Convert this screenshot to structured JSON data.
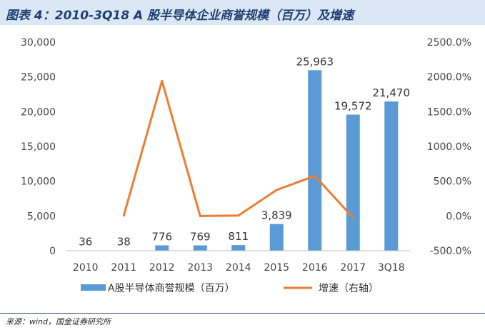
{
  "header": {
    "title": "图表 4：2010-3Q18 A 股半导体企业商誉规模（百万）及增速"
  },
  "footer": {
    "source": "来源：wind，国金证券研究所"
  },
  "colors": {
    "bar": "#5b9bd5",
    "line": "#ed7d31",
    "title_bg": "#dbe7f5",
    "title_text": "#1c3f73"
  },
  "chart_data": {
    "type": "bar+line",
    "categories": [
      "2010",
      "2011",
      "2012",
      "2013",
      "2014",
      "2015",
      "2016",
      "2017",
      "3Q18"
    ],
    "series": [
      {
        "name": "A股半导体商誉规模（百万）",
        "type": "bar",
        "axis": "left",
        "values": [
          36,
          38,
          776,
          769,
          811,
          3839,
          25963,
          19572,
          21470
        ],
        "labels": [
          "36",
          "38",
          "776",
          "769",
          "811",
          "3,839",
          "25,963",
          "19,572",
          "21,470"
        ]
      },
      {
        "name": "增速（右轴）",
        "type": "line",
        "axis": "right",
        "values": [
          null,
          5.6,
          1942.1,
          -0.9,
          5.5,
          373.4,
          576.3,
          -24.6,
          null
        ]
      }
    ],
    "y_left": {
      "min": 0,
      "max": 30000,
      "ticks": [
        "0",
        "5,000",
        "10,000",
        "15,000",
        "20,000",
        "25,000",
        "30,000"
      ]
    },
    "y_right": {
      "min": -500,
      "max": 2500,
      "ticks": [
        "-500.0%",
        "0.0%",
        "500.0%",
        "1000.0%",
        "1500.0%",
        "2000.0%",
        "2500.0%"
      ]
    },
    "legend": [
      "A股半导体商誉规模（百万）",
      "增速（右轴）"
    ],
    "legend_position": "bottom"
  }
}
